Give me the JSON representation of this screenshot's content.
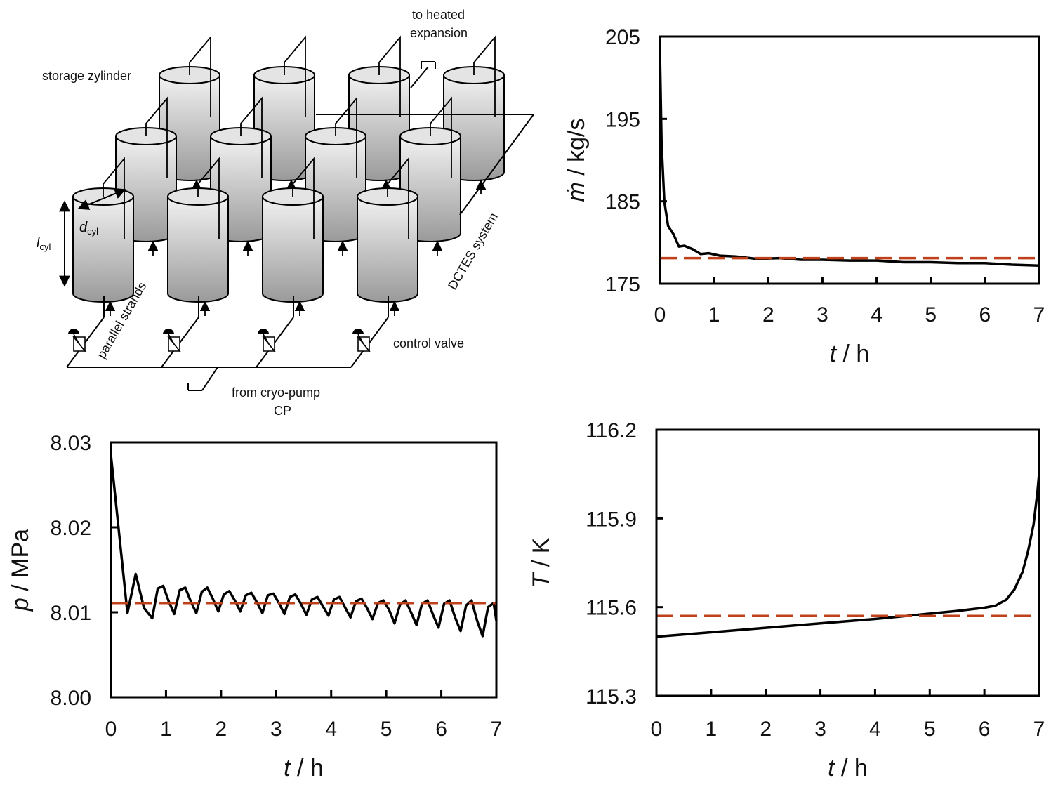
{
  "schematic": {
    "labels": {
      "storage": "storage zylinder",
      "heated_1": "to heated",
      "heated_2": "expansion",
      "dcyl_main": "d",
      "dcyl_sub": "cyl",
      "lcyl_main": "l",
      "lcyl_sub": "cyl",
      "parallel": "parallel strands",
      "dctes": "DCTES system",
      "valve": "control valve",
      "cryo_1": "from cryo-pump",
      "cryo_2": "CP"
    }
  },
  "colors": {
    "series": "#000000",
    "reference": "#c0401c"
  },
  "chart_data": [
    {
      "id": "mdot",
      "type": "line",
      "xlabel_var": "t",
      "xlabel_unit": " / h",
      "ylabel_var": "ṁ",
      "ylabel_unit": " / kg/s",
      "xlim": [
        0,
        7
      ],
      "ylim": [
        175,
        205
      ],
      "xticks": [
        "0",
        "1",
        "2",
        "3",
        "4",
        "5",
        "6",
        "7"
      ],
      "yticks": [
        "175",
        "185",
        "195",
        "205"
      ],
      "series": [
        {
          "style": "solid",
          "x": [
            0,
            0.03,
            0.08,
            0.15,
            0.25,
            0.35,
            0.45,
            0.6,
            0.75,
            0.9,
            1.1,
            1.4,
            1.8,
            2.2,
            2.6,
            3.0,
            3.5,
            4.0,
            4.5,
            5.0,
            5.5,
            6.0,
            6.5,
            7.0
          ],
          "y": [
            203,
            192,
            185,
            182,
            181,
            179.5,
            179.6,
            179.2,
            178.6,
            178.7,
            178.4,
            178.3,
            178.0,
            178.1,
            177.9,
            177.9,
            177.8,
            177.8,
            177.6,
            177.6,
            177.5,
            177.5,
            177.3,
            177.2
          ]
        },
        {
          "style": "dashed",
          "x": [
            0,
            7
          ],
          "y": [
            178.1,
            178.1
          ]
        }
      ]
    },
    {
      "id": "pressure",
      "type": "line",
      "xlabel_var": "t",
      "xlabel_unit": " / h",
      "ylabel_var": "p",
      "ylabel_unit": " / MPa",
      "xlim": [
        0,
        7
      ],
      "ylim": [
        8.0,
        8.03
      ],
      "xticks": [
        "0",
        "1",
        "2",
        "3",
        "4",
        "5",
        "6",
        "7"
      ],
      "yticks": [
        "8.00",
        "8.01",
        "8.02",
        "8.03"
      ],
      "series": [
        {
          "style": "solid",
          "x": [
            0,
            0.3,
            0.45,
            0.6,
            0.75,
            0.85,
            0.95,
            1.05,
            1.15,
            1.25,
            1.35,
            1.45,
            1.55,
            1.65,
            1.75,
            1.85,
            1.95,
            2.05,
            2.15,
            2.25,
            2.35,
            2.45,
            2.55,
            2.65,
            2.75,
            2.85,
            2.95,
            3.05,
            3.15,
            3.25,
            3.35,
            3.45,
            3.55,
            3.65,
            3.75,
            3.85,
            3.95,
            4.05,
            4.15,
            4.25,
            4.35,
            4.45,
            4.55,
            4.65,
            4.75,
            4.85,
            4.95,
            5.05,
            5.15,
            5.25,
            5.35,
            5.45,
            5.55,
            5.65,
            5.75,
            5.85,
            5.95,
            6.05,
            6.15,
            6.25,
            6.35,
            6.45,
            6.55,
            6.65,
            6.75,
            6.85,
            6.95,
            7.0
          ],
          "y": [
            8.0285,
            8.0099,
            8.0145,
            8.0105,
            8.0093,
            8.0128,
            8.0131,
            8.0113,
            8.0098,
            8.0126,
            8.0129,
            8.0113,
            8.0099,
            8.0124,
            8.0129,
            8.0116,
            8.0101,
            8.0121,
            8.0125,
            8.0114,
            8.0101,
            8.012,
            8.0123,
            8.0112,
            8.0099,
            8.012,
            8.0122,
            8.0111,
            8.0098,
            8.0118,
            8.0121,
            8.011,
            8.0097,
            8.0115,
            8.0118,
            8.0107,
            8.0096,
            8.0115,
            8.0118,
            8.0106,
            8.0094,
            8.0113,
            8.0116,
            8.0105,
            8.0092,
            8.0111,
            8.0114,
            8.0103,
            8.0087,
            8.0109,
            8.0114,
            8.01,
            8.0085,
            8.011,
            8.0114,
            8.0097,
            8.0082,
            8.011,
            8.0114,
            8.0094,
            8.0078,
            8.0108,
            8.0114,
            8.009,
            8.0072,
            8.0106,
            8.0111,
            8.009
          ]
        },
        {
          "style": "dashed",
          "x": [
            0,
            7
          ],
          "y": [
            8.0111,
            8.0111
          ]
        }
      ]
    },
    {
      "id": "temperature",
      "type": "line",
      "xlabel_var": "t",
      "xlabel_unit": " / h",
      "ylabel_var": "T",
      "ylabel_unit": " / K",
      "xlim": [
        0,
        7
      ],
      "ylim": [
        115.3,
        116.2
      ],
      "xticks": [
        "0",
        "1",
        "2",
        "3",
        "4",
        "5",
        "6",
        "7"
      ],
      "yticks": [
        "115.3",
        "115.6",
        "115.9",
        "116.2"
      ],
      "series": [
        {
          "style": "solid",
          "x": [
            0,
            1,
            2,
            3,
            4,
            5,
            5.5,
            6.0,
            6.2,
            6.4,
            6.55,
            6.7,
            6.8,
            6.9,
            6.97,
            7.0
          ],
          "y": [
            115.5,
            115.515,
            115.53,
            115.545,
            115.56,
            115.578,
            115.587,
            115.598,
            115.605,
            115.625,
            115.66,
            115.72,
            115.79,
            115.88,
            115.99,
            116.05
          ]
        },
        {
          "style": "dashed",
          "x": [
            0,
            7
          ],
          "y": [
            115.57,
            115.57
          ]
        }
      ]
    }
  ]
}
